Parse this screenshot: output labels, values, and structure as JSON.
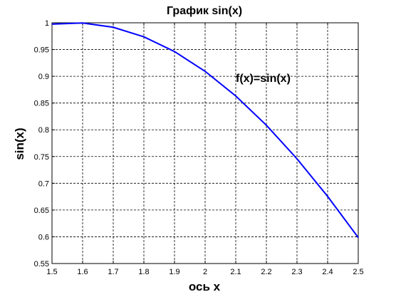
{
  "chart_data": {
    "type": "line",
    "title": "График sin(x)",
    "xlabel": "ось x",
    "ylabel": "sin(x)",
    "xlim": [
      1.5,
      2.5
    ],
    "ylim": [
      0.55,
      1
    ],
    "grid": true,
    "x_ticks": [
      "1.5",
      "1.6",
      "1.7",
      "1.8",
      "1.9",
      "2",
      "2.1",
      "2.2",
      "2.3",
      "2.4",
      "2.5"
    ],
    "y_ticks": [
      "0.55",
      "0.6",
      "0.65",
      "0.7",
      "0.75",
      "0.8",
      "0.85",
      "0.9",
      "0.95",
      "1"
    ],
    "annotation": "f(x)=sin(x)",
    "series": [
      {
        "color": "#0000ff",
        "x": [
          1.5,
          1.6,
          1.7,
          1.8,
          1.9,
          2.0,
          2.1,
          2.2,
          2.3,
          2.4,
          2.5
        ],
        "values": [
          0.9975,
          0.9996,
          0.9917,
          0.9738,
          0.9463,
          0.9093,
          0.8632,
          0.8085,
          0.7457,
          0.6755,
          0.5985
        ]
      }
    ]
  }
}
